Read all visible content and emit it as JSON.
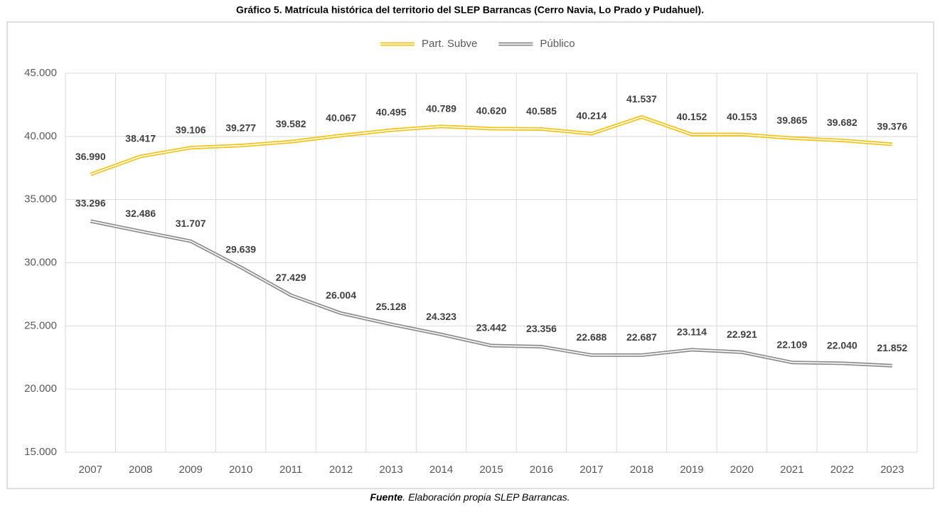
{
  "chart_data": {
    "type": "line",
    "title": "Gráfico 5. Matrícula histórica del territorio del SLEP Barrancas (Cerro Navia, Lo Prado y Pudahuel).",
    "source_label": "Fuente",
    "source_text": ". Elaboración propia SLEP Barrancas.",
    "categories": [
      "2007",
      "2008",
      "2009",
      "2010",
      "2011",
      "2012",
      "2013",
      "2014",
      "2015",
      "2016",
      "2017",
      "2018",
      "2019",
      "2020",
      "2021",
      "2022",
      "2023"
    ],
    "series": [
      {
        "name": "Part. Subve",
        "color": "#f2c314",
        "values": [
          36990,
          38417,
          39106,
          39277,
          39582,
          40067,
          40495,
          40789,
          40620,
          40585,
          40214,
          41537,
          40152,
          40153,
          39865,
          39682,
          39376
        ],
        "value_labels": [
          "36.990",
          "38.417",
          "39.106",
          "39.277",
          "39.582",
          "40.067",
          "40.495",
          "40.789",
          "40.620",
          "40.585",
          "40.214",
          "41.537",
          "40.152",
          "40.153",
          "39.865",
          "39.682",
          "39.376"
        ]
      },
      {
        "name": "Público",
        "color": "#8c8c8c",
        "values": [
          33296,
          32486,
          31707,
          29639,
          27429,
          26004,
          25128,
          24323,
          23442,
          23356,
          22688,
          22687,
          23114,
          22921,
          22109,
          22040,
          21852
        ],
        "value_labels": [
          "33.296",
          "32.486",
          "31.707",
          "29.639",
          "27.429",
          "26.004",
          "25.128",
          "24.323",
          "23.442",
          "23.356",
          "22.688",
          "22.687",
          "23.114",
          "22.921",
          "22.109",
          "22.040",
          "21.852"
        ]
      }
    ],
    "ylim": [
      15000,
      45000
    ],
    "yticks": [
      {
        "value": 15000,
        "label": "15.000"
      },
      {
        "value": 20000,
        "label": "20.000"
      },
      {
        "value": 25000,
        "label": "25.000"
      },
      {
        "value": 30000,
        "label": "30.000"
      },
      {
        "value": 35000,
        "label": "35.000"
      },
      {
        "value": 40000,
        "label": "40.000"
      },
      {
        "value": 45000,
        "label": "45.000"
      }
    ],
    "grid": true,
    "legend": "top"
  }
}
